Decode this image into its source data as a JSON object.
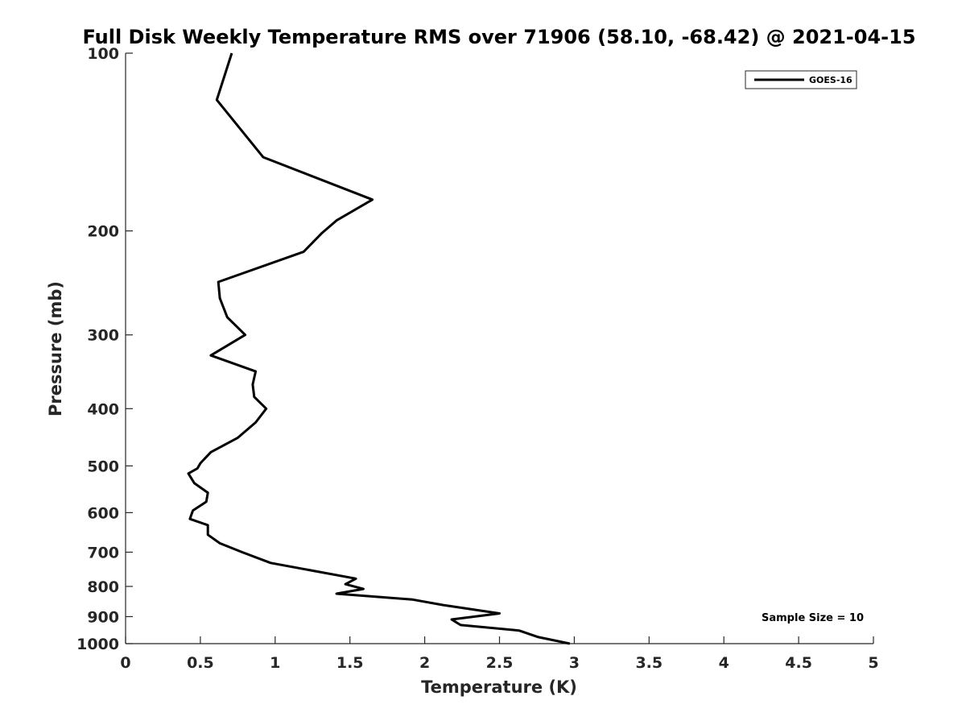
{
  "chart_data": {
    "type": "line",
    "title": "Full Disk Weekly Temperature RMS over 71906 (58.10, -68.42) @ 2021-04-15",
    "xlabel": "Temperature (K)",
    "ylabel": "Pressure (mb)",
    "xlim": [
      0,
      5
    ],
    "ylim": [
      100,
      1000
    ],
    "yscale": "log",
    "yreversed": true,
    "xticks": [
      0,
      0.5,
      1,
      1.5,
      2,
      2.5,
      3,
      3.5,
      4,
      4.5,
      5
    ],
    "xtick_labels": [
      "0",
      "0.5",
      "1",
      "1.5",
      "2",
      "2.5",
      "3",
      "3.5",
      "4",
      "4.5",
      "5"
    ],
    "yticks": [
      100,
      200,
      300,
      400,
      500,
      600,
      700,
      800,
      900,
      1000
    ],
    "ytick_labels": [
      "100",
      "200",
      "300",
      "400",
      "500",
      "600",
      "700",
      "800",
      "900",
      "1000"
    ],
    "grid": false,
    "legend_position": "top-right",
    "series": [
      {
        "name": "GOES-16",
        "color": "#000000",
        "x": [
          0.71,
          0.61,
          0.92,
          1.65,
          1.41,
          1.31,
          1.19,
          0.62,
          0.63,
          0.68,
          0.8,
          0.57,
          0.87,
          0.85,
          0.86,
          0.94,
          0.87,
          0.75,
          0.57,
          0.5,
          0.48,
          0.42,
          0.46,
          0.55,
          0.54,
          0.45,
          0.43,
          0.55,
          0.55,
          0.63,
          0.78,
          0.97,
          1.54,
          1.47,
          1.59,
          1.41,
          1.92,
          2.12,
          2.5,
          2.18,
          2.24,
          2.63,
          2.76,
          2.97
        ],
        "y": [
          100,
          120,
          150,
          177,
          192,
          202,
          217,
          244,
          260,
          280,
          300,
          325,
          346,
          364,
          382,
          400,
          422,
          448,
          474,
          495,
          505,
          515,
          535,
          555,
          575,
          595,
          615,
          630,
          654,
          676,
          700,
          730,
          776,
          793,
          808,
          823,
          842,
          860,
          889,
          910,
          930,
          950,
          975,
          1000
        ]
      }
    ],
    "annotation": "Sample Size = 10"
  }
}
